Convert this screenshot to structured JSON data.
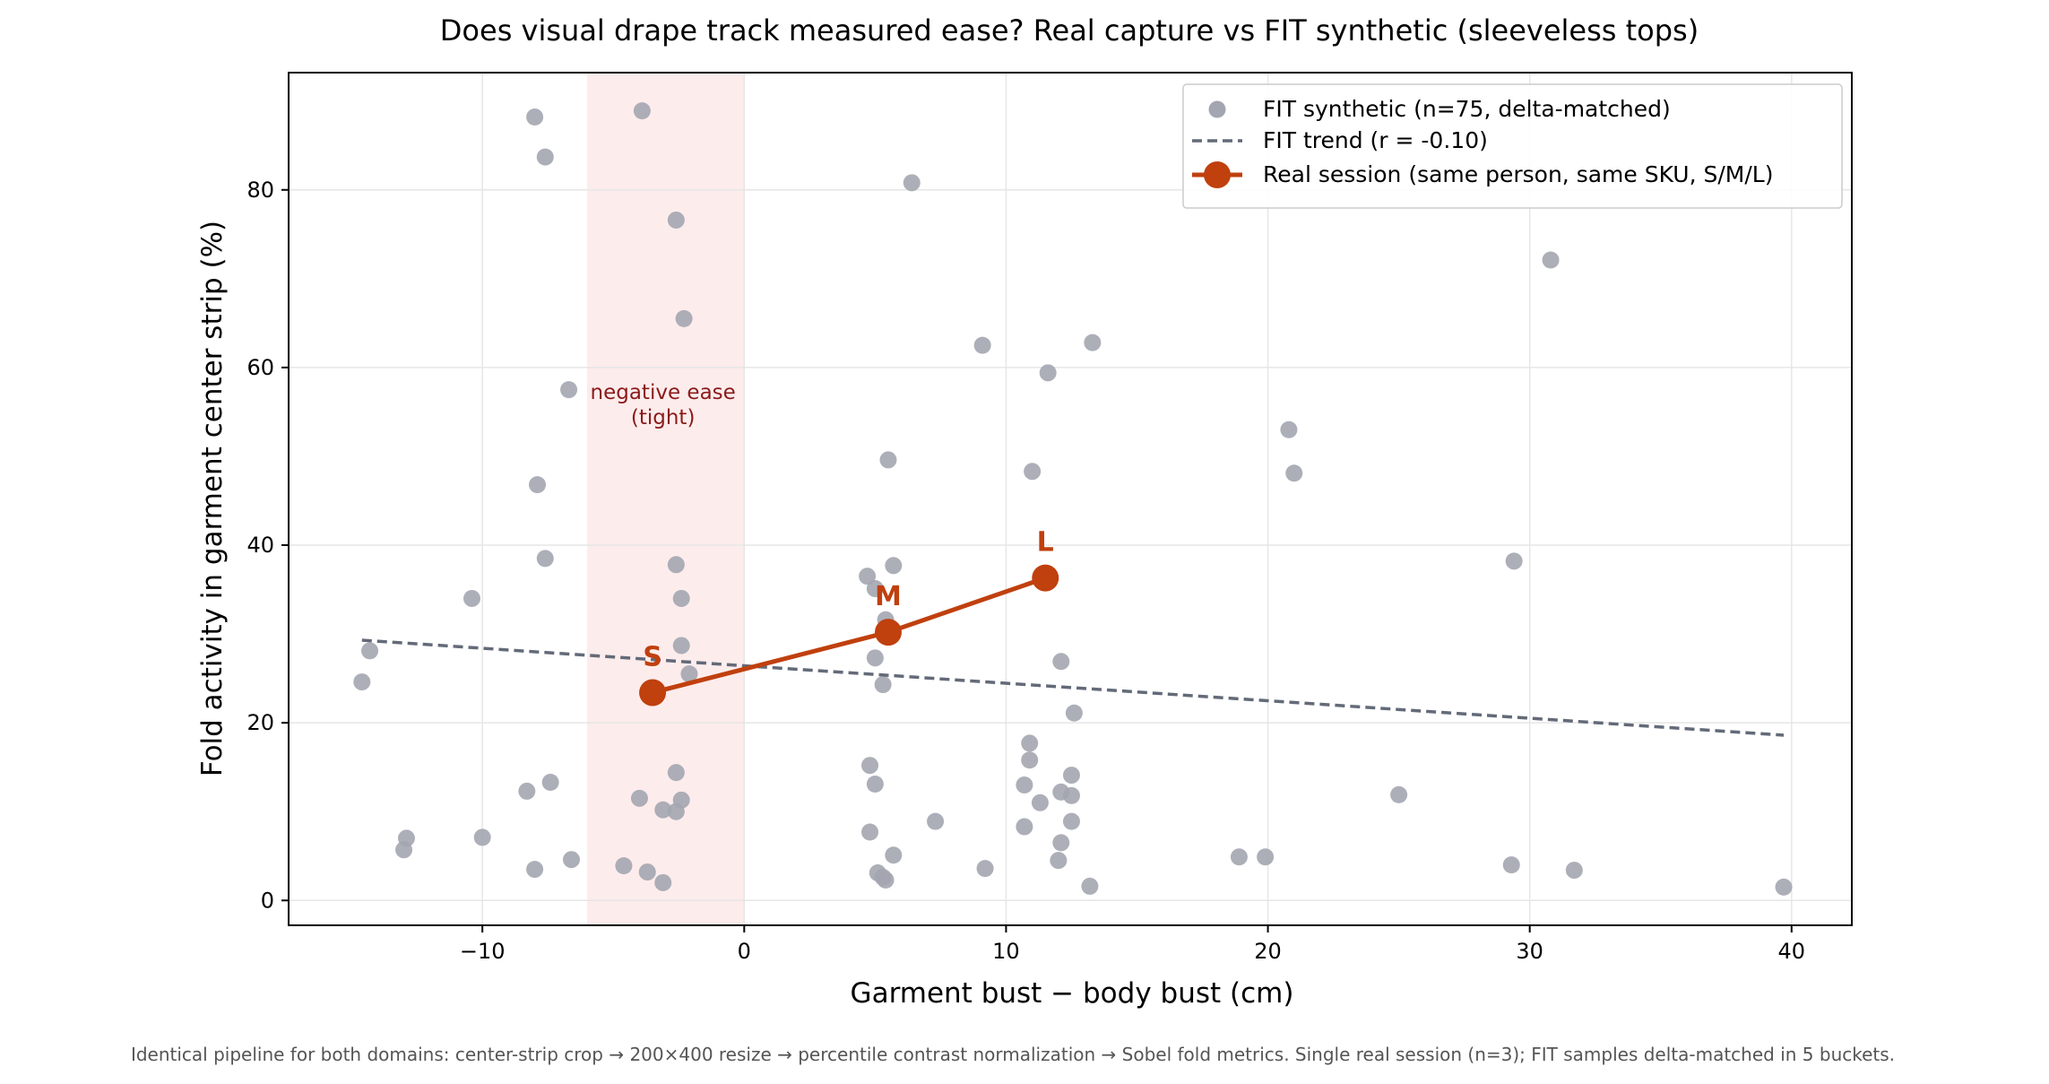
{
  "title": "Does visual drape track measured ease?  Real capture vs FIT synthetic (sleeveless tops)",
  "footnote": "Identical pipeline for both domains: center-strip crop → 200×400 resize → percentile contrast normalization → Sobel fold metrics.  Single real session (n=3); FIT samples delta-matched in 5 buckets.",
  "chart_data": {
    "type": "scatter",
    "title": "Does visual drape track measured ease?  Real capture vs FIT synthetic (sleeveless tops)",
    "xlabel": "Garment bust − body bust  (cm)",
    "ylabel": "Fold activity in garment center strip  (%)",
    "xlim": [
      -17.4,
      42.3
    ],
    "ylim": [
      -2.8,
      93.2
    ],
    "xticks": [
      -10,
      0,
      10,
      20,
      30,
      40
    ],
    "xtick_labels": [
      "−10",
      "0",
      "10",
      "20",
      "30",
      "40"
    ],
    "yticks": [
      0,
      20,
      40,
      60,
      80
    ],
    "ytick_labels": [
      "0",
      "20",
      "40",
      "60",
      "80"
    ],
    "grid": true,
    "legend_position": "top-right",
    "shaded_region": {
      "x": [
        -6,
        0
      ],
      "color": "#fdecec",
      "label": "negative ease\n(tight)"
    },
    "series": [
      {
        "name": "FIT synthetic (n=75, delta-matched)",
        "kind": "scatter",
        "color": "#a3a6b0",
        "points": [
          [
            -8.0,
            88.2
          ],
          [
            -3.9,
            88.9
          ],
          [
            -7.6,
            83.7
          ],
          [
            6.4,
            80.8
          ],
          [
            -2.6,
            76.6
          ],
          [
            30.8,
            72.1
          ],
          [
            -2.3,
            65.5
          ],
          [
            9.1,
            62.5
          ],
          [
            13.3,
            62.8
          ],
          [
            11.6,
            59.4
          ],
          [
            -6.7,
            57.5
          ],
          [
            20.8,
            53.0
          ],
          [
            21.0,
            48.1
          ],
          [
            5.5,
            49.6
          ],
          [
            11.0,
            48.3
          ],
          [
            -7.9,
            46.8
          ],
          [
            -7.6,
            38.5
          ],
          [
            29.4,
            38.2
          ],
          [
            -2.6,
            37.8
          ],
          [
            5.7,
            37.7
          ],
          [
            4.7,
            36.5
          ],
          [
            5.0,
            35.1
          ],
          [
            -10.4,
            34.0
          ],
          [
            -2.4,
            34.0
          ],
          [
            5.4,
            31.6
          ],
          [
            -2.4,
            28.7
          ],
          [
            5.0,
            27.3
          ],
          [
            12.1,
            26.9
          ],
          [
            -2.1,
            25.5
          ],
          [
            5.3,
            24.3
          ],
          [
            -14.6,
            24.6
          ],
          [
            -14.3,
            28.1
          ],
          [
            12.6,
            21.1
          ],
          [
            10.9,
            17.7
          ],
          [
            10.9,
            15.8
          ],
          [
            4.8,
            15.2
          ],
          [
            -2.6,
            14.4
          ],
          [
            12.5,
            14.1
          ],
          [
            -7.4,
            13.3
          ],
          [
            5.0,
            13.1
          ],
          [
            10.7,
            13.0
          ],
          [
            -8.3,
            12.3
          ],
          [
            12.1,
            12.2
          ],
          [
            25.0,
            11.9
          ],
          [
            12.5,
            11.8
          ],
          [
            -4.0,
            11.5
          ],
          [
            -2.4,
            11.3
          ],
          [
            11.3,
            11.0
          ],
          [
            -3.1,
            10.2
          ],
          [
            -2.6,
            10.0
          ],
          [
            7.3,
            8.9
          ],
          [
            12.5,
            8.9
          ],
          [
            10.7,
            8.3
          ],
          [
            4.8,
            7.7
          ],
          [
            -10.0,
            7.1
          ],
          [
            -12.9,
            7.0
          ],
          [
            12.1,
            6.5
          ],
          [
            -13.0,
            5.7
          ],
          [
            5.7,
            5.1
          ],
          [
            18.9,
            4.9
          ],
          [
            19.9,
            4.9
          ],
          [
            -6.6,
            4.6
          ],
          [
            12.0,
            4.5
          ],
          [
            -4.6,
            3.9
          ],
          [
            29.3,
            4.0
          ],
          [
            -8.0,
            3.5
          ],
          [
            9.2,
            3.6
          ],
          [
            -3.7,
            3.2
          ],
          [
            31.7,
            3.4
          ],
          [
            5.1,
            3.1
          ],
          [
            5.3,
            2.6
          ],
          [
            5.4,
            2.3
          ],
          [
            -3.1,
            2.0
          ],
          [
            13.2,
            1.6
          ],
          [
            39.7,
            1.5
          ]
        ]
      },
      {
        "name": "FIT trend  (r = -0.10)",
        "kind": "trend",
        "color": "#636a78",
        "x": [
          -14.6,
          39.7
        ],
        "y": [
          29.3,
          18.6
        ]
      },
      {
        "name": "Real session (same person, same SKU, S/M/L)",
        "kind": "line-markers",
        "color": "#c0400e",
        "x": [
          -3.5,
          5.5,
          11.5
        ],
        "y": [
          23.4,
          30.2,
          36.3
        ],
        "labels": [
          "S",
          "M",
          "L"
        ]
      }
    ]
  }
}
